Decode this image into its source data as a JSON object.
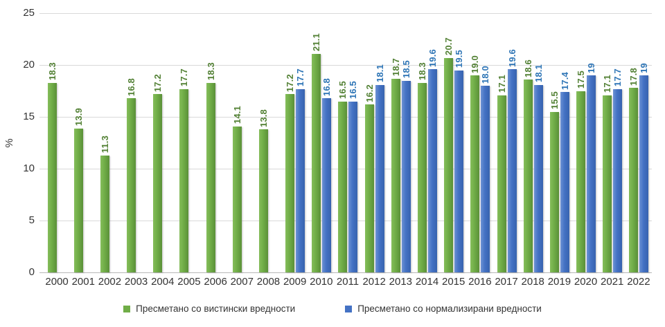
{
  "chart_data": {
    "type": "bar",
    "title": "",
    "xlabel": "",
    "ylabel": "%",
    "ylim": [
      0,
      25
    ],
    "yticks": [
      0,
      5,
      10,
      15,
      20,
      25
    ],
    "grid": true,
    "legend_position": "bottom",
    "categories": [
      "2000",
      "2001",
      "2002",
      "2003",
      "2004",
      "2005",
      "2006",
      "2007",
      "2008",
      "2009",
      "2010",
      "2011",
      "2012",
      "2013",
      "2014",
      "2015",
      "2016",
      "2017",
      "2018",
      "2019",
      "2020",
      "2021",
      "2022"
    ],
    "series": [
      {
        "name": "Пресметано со вистински вредности",
        "color": "#70AD47",
        "fill": {
          "light": "#85bd5b",
          "mid": "#70ad47",
          "dark": "#5a9038"
        },
        "label_color": "#538135",
        "values": [
          18.3,
          13.9,
          11.3,
          16.8,
          17.2,
          17.7,
          18.3,
          14.1,
          13.8,
          17.2,
          21.1,
          16.5,
          16.2,
          18.7,
          18.3,
          20.7,
          19.0,
          17.1,
          18.6,
          15.5,
          17.5,
          17.1,
          17.8
        ],
        "labels": [
          "18.3",
          "13.9",
          "11.3",
          "16.8",
          "17.2",
          "17.7",
          "18.3",
          "14.1",
          "13.8",
          "17.2",
          "21.1",
          "16.5",
          "16.2",
          "18.7",
          "18.3",
          "20.7",
          "19.0",
          "17.1",
          "18.6",
          "15.5",
          "17.5",
          "17.1",
          "17.8"
        ]
      },
      {
        "name": "Пресметано со нормализирани  вредности",
        "color": "#4472C4",
        "fill": {
          "light": "#6c92d4",
          "mid": "#4472c4",
          "dark": "#3763ae"
        },
        "label_color": "#2E75B6",
        "values": [
          null,
          null,
          null,
          null,
          null,
          null,
          null,
          null,
          null,
          17.7,
          16.8,
          16.5,
          18.1,
          18.5,
          19.6,
          19.5,
          18.0,
          19.6,
          18.1,
          17.4,
          19,
          17.7,
          19
        ],
        "labels": [
          null,
          null,
          null,
          null,
          null,
          null,
          null,
          null,
          null,
          "17.7",
          "16.8",
          "16.5",
          "18.1",
          "18.5",
          "19.6",
          "19.5",
          "18.0",
          "19.6",
          "18.1",
          "17.4",
          "19",
          "17.7",
          "19"
        ]
      }
    ],
    "axis_colors": {
      "gridline": "#d9d9d9",
      "axis_line": "#b7b7b7",
      "tick_label": "#333333"
    }
  }
}
